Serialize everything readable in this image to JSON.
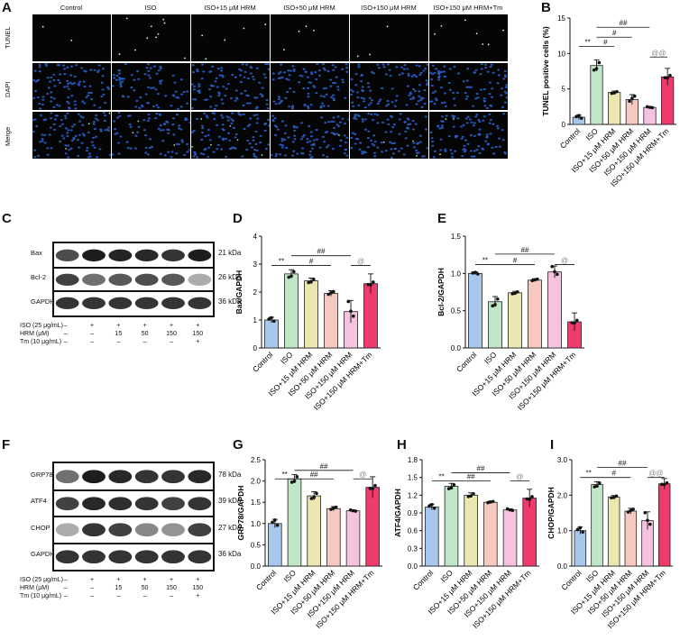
{
  "panels": {
    "A": "A",
    "B": "B",
    "C": "C",
    "D": "D",
    "E": "E",
    "F": "F",
    "G": "G",
    "H": "H",
    "I": "I"
  },
  "microscopy": {
    "columns": [
      "Control",
      "ISO",
      "ISO+15 μM HRM",
      "ISO+50 μM HRM",
      "ISO+150 μM HRM",
      "ISO+150 μM HRM+Tm"
    ],
    "rows": [
      "TUNEL",
      "DAPI",
      "Merge"
    ],
    "colors": {
      "tunel_bg": "#050505",
      "dapi_nuclei": "#2a5fc9"
    }
  },
  "western_C": {
    "bands": [
      {
        "label": "Bax",
        "kda": "21 kDa"
      },
      {
        "label": "Bcl-2",
        "kda": "26 kDa"
      },
      {
        "label": "GAPDH",
        "kda": "36 kDa"
      }
    ],
    "treatment": {
      "rows": [
        {
          "label": "ISO (25 μg/mL)",
          "cells": [
            "–",
            "+",
            "+",
            "+",
            "+",
            "+"
          ]
        },
        {
          "label": "HRM (μM)",
          "cells": [
            "–",
            "–",
            "15",
            "50",
            "150",
            "150"
          ]
        },
        {
          "label": "Tm (10 μg/mL)",
          "cells": [
            "–",
            "–",
            "–",
            "–",
            "–",
            "+"
          ]
        }
      ]
    }
  },
  "western_F": {
    "bands": [
      {
        "label": "GRP78",
        "kda": "78 kDa"
      },
      {
        "label": "ATF4",
        "kda": "39 kDa"
      },
      {
        "label": "CHOP",
        "kda": "27 kDa"
      },
      {
        "label": "GAPDH",
        "kda": "36 kDa"
      }
    ],
    "treatment": {
      "rows": [
        {
          "label": "ISO (25 μg/mL)",
          "cells": [
            "–",
            "+",
            "+",
            "+",
            "+",
            "+"
          ]
        },
        {
          "label": "HRM (μM)",
          "cells": [
            "–",
            "–",
            "15",
            "50",
            "150",
            "150"
          ]
        },
        {
          "label": "Tm (10 μg/mL)",
          "cells": [
            "–",
            "–",
            "–",
            "–",
            "–",
            "+"
          ]
        }
      ]
    }
  },
  "bar_colors": [
    "#a7c8ec",
    "#bfe6c6",
    "#ece7b0",
    "#f6c9c0",
    "#f5c3e0",
    "#ee3b6b"
  ],
  "chart_data": [
    {
      "panel": "B",
      "type": "bar",
      "categories": [
        "Control",
        "ISO",
        "ISO+15 μM HRM",
        "ISO+50 μM HRM",
        "ISO+150 μM HRM",
        "ISO+150 μM HRM+Tm"
      ],
      "values": [
        1.0,
        8.3,
        4.5,
        3.5,
        2.4,
        6.7
      ],
      "errors": [
        0.3,
        0.8,
        0.2,
        0.7,
        0.1,
        1.2
      ],
      "ylabel": "TUNEL positive cells (%)",
      "ylim": [
        0,
        15
      ],
      "yticks": [
        0,
        5,
        10,
        15
      ],
      "sig": [
        {
          "from": 0,
          "to": 1,
          "label": "**",
          "y": 11.0
        },
        {
          "from": 1,
          "to": 2,
          "label": "#",
          "y": 11.0
        },
        {
          "from": 1,
          "to": 3,
          "label": "#",
          "y": 12.3
        },
        {
          "from": 1,
          "to": 4,
          "label": "##",
          "y": 13.7
        },
        {
          "from": 4,
          "to": 5,
          "label": "@@",
          "y": 9.5
        }
      ]
    },
    {
      "panel": "D",
      "type": "bar",
      "categories": [
        "Control",
        "ISO",
        "ISO+15 μM HRM",
        "ISO+50 μM HRM",
        "ISO+150 μM HRM",
        "ISO+150 μM HRM+Tm"
      ],
      "values": [
        1.0,
        2.65,
        2.4,
        1.95,
        1.3,
        2.3
      ],
      "errors": [
        0.1,
        0.15,
        0.1,
        0.1,
        0.4,
        0.35
      ],
      "ylabel": "Bax/GAPDH",
      "ylim": [
        0,
        4
      ],
      "yticks": [
        0,
        1,
        2,
        3,
        4
      ],
      "sig": [
        {
          "from": 0,
          "to": 1,
          "label": "**",
          "y": 2.95
        },
        {
          "from": 1,
          "to": 3,
          "label": "#",
          "y": 2.95
        },
        {
          "from": 1,
          "to": 4,
          "label": "##",
          "y": 3.3
        },
        {
          "from": 4,
          "to": 5,
          "label": "@",
          "y": 2.95
        }
      ]
    },
    {
      "panel": "E",
      "type": "bar",
      "categories": [
        "Control",
        "ISO",
        "ISO+15 μM HRM",
        "ISO+50 μM HRM",
        "ISO+150 μM HRM",
        "ISO+150 μM HRM+Tm"
      ],
      "values": [
        1.0,
        0.62,
        0.74,
        0.91,
        1.02,
        0.35
      ],
      "errors": [
        0.02,
        0.07,
        0.02,
        0.02,
        0.08,
        0.12
      ],
      "ylabel": "Bcl-2/GAPDH",
      "ylim": [
        0,
        1.5
      ],
      "yticks": [
        0,
        0.5,
        1.0,
        1.5
      ],
      "sig": [
        {
          "from": 0,
          "to": 1,
          "label": "**",
          "y": 1.12
        },
        {
          "from": 1,
          "to": 3,
          "label": "#",
          "y": 1.12
        },
        {
          "from": 1,
          "to": 4,
          "label": "##",
          "y": 1.26
        },
        {
          "from": 4,
          "to": 5,
          "label": "@",
          "y": 1.12
        }
      ]
    },
    {
      "panel": "G",
      "type": "bar",
      "categories": [
        "Control",
        "ISO",
        "ISO+15 μM HRM",
        "ISO+50 μM HRM",
        "ISO+150 μM HRM",
        "ISO+150 μM HRM+Tm"
      ],
      "values": [
        1.0,
        2.05,
        1.65,
        1.35,
        1.3,
        1.85
      ],
      "errors": [
        0.1,
        0.1,
        0.1,
        0.05,
        0.02,
        0.25
      ],
      "ylabel": "GRP78/GAPDH",
      "ylim": [
        0,
        2.5
      ],
      "yticks": [
        0,
        0.5,
        1.0,
        1.5,
        2.0,
        2.5
      ],
      "sig": [
        {
          "from": 0,
          "to": 1,
          "label": "**",
          "y": 2.05
        },
        {
          "from": 1,
          "to": 3,
          "label": "##",
          "y": 2.05
        },
        {
          "from": 1,
          "to": 4,
          "label": "##",
          "y": 2.25
        },
        {
          "from": 4,
          "to": 5,
          "label": "@",
          "y": 2.05
        }
      ]
    },
    {
      "panel": "H",
      "type": "bar",
      "categories": [
        "Control",
        "ISO",
        "ISO+15 μM HRM",
        "ISO+50 μM HRM",
        "ISO+150 μM HRM",
        "ISO+150 μM HRM+Tm"
      ],
      "values": [
        1.0,
        1.35,
        1.2,
        1.08,
        0.95,
        1.15
      ],
      "errors": [
        0.05,
        0.05,
        0.04,
        0.02,
        0.02,
        0.15
      ],
      "ylabel": "ATF4/GAPDH",
      "ylim": [
        0,
        1.8
      ],
      "yticks": [
        0,
        0.3,
        0.6,
        0.9,
        1.2,
        1.5,
        1.8
      ],
      "sig": [
        {
          "from": 0,
          "to": 1,
          "label": "**",
          "y": 1.44
        },
        {
          "from": 1,
          "to": 3,
          "label": "##",
          "y": 1.44
        },
        {
          "from": 1,
          "to": 4,
          "label": "##",
          "y": 1.58
        },
        {
          "from": 4,
          "to": 5,
          "label": "@",
          "y": 1.44
        }
      ]
    },
    {
      "panel": "I",
      "type": "bar",
      "categories": [
        "Control",
        "ISO",
        "ISO+15 μM HRM",
        "ISO+50 μM HRM",
        "ISO+150 μM HRM",
        "ISO+150 μM HRM+Tm"
      ],
      "values": [
        1.0,
        2.3,
        1.95,
        1.55,
        1.28,
        2.32
      ],
      "errors": [
        0.1,
        0.08,
        0.04,
        0.08,
        0.25,
        0.15
      ],
      "ylabel": "CHOP/GAPDH",
      "ylim": [
        0,
        3
      ],
      "yticks": [
        0,
        1,
        2,
        3
      ],
      "sig": [
        {
          "from": 0,
          "to": 1,
          "label": "**",
          "y": 2.5
        },
        {
          "from": 1,
          "to": 3,
          "label": "#",
          "y": 2.5
        },
        {
          "from": 1,
          "to": 4,
          "label": "##",
          "y": 2.78
        },
        {
          "from": 4,
          "to": 5,
          "label": "@@",
          "y": 2.5
        }
      ]
    }
  ]
}
